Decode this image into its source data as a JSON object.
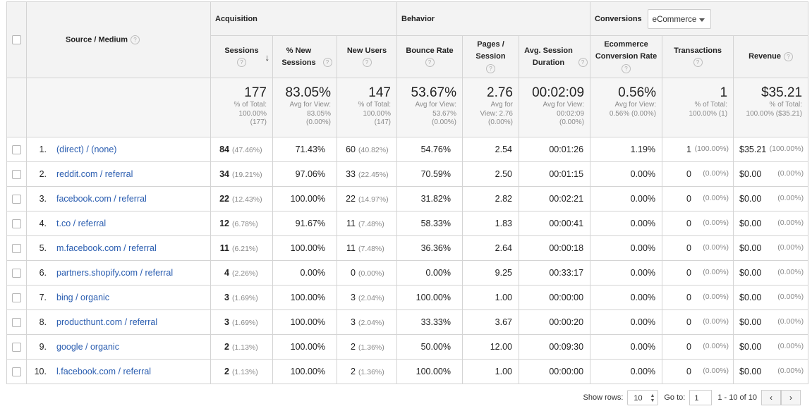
{
  "header": {
    "source_medium": "Source / Medium",
    "acquisition": "Acquisition",
    "behavior": "Behavior",
    "conversions": "Conversions",
    "conversion_type": "eCommerce",
    "columns": {
      "sessions": "Sessions",
      "new_sessions": "% New Sessions",
      "new_users": "New Users",
      "bounce_rate": "Bounce Rate",
      "pages_session": "Pages / Session",
      "avg_duration": "Avg. Session Duration",
      "ecom_rate": "Ecommerce Conversion Rate",
      "transactions": "Transactions",
      "revenue": "Revenue"
    },
    "help_glyph": "?",
    "sort_glyph": "↓"
  },
  "totals": {
    "sessions": {
      "value": "177",
      "l1": "% of Total:",
      "l2": "100.00%",
      "l3": "(177)"
    },
    "new_sessions": {
      "value": "83.05%",
      "l1": "Avg for View:",
      "l2": "83.05%",
      "l3": "(0.00%)"
    },
    "new_users": {
      "value": "147",
      "l1": "% of Total:",
      "l2": "100.00%",
      "l3": "(147)"
    },
    "bounce_rate": {
      "value": "53.67%",
      "l1": "Avg for View:",
      "l2": "53.67%",
      "l3": "(0.00%)"
    },
    "pages_session": {
      "value": "2.76",
      "l1": "Avg for",
      "l2": "View: 2.76",
      "l3": "(0.00%)"
    },
    "avg_duration": {
      "value": "00:02:09",
      "l1": "Avg for View:",
      "l2": "00:02:09",
      "l3": "(0.00%)"
    },
    "ecom_rate": {
      "value": "0.56%",
      "l1": "Avg for View:",
      "l2": "0.56% (0.00%)",
      "l3": ""
    },
    "transactions": {
      "value": "1",
      "l1": "% of Total:",
      "l2": "100.00% (1)",
      "l3": ""
    },
    "revenue": {
      "value": "$35.21",
      "l1": "% of Total:",
      "l2": "100.00% ($35.21)",
      "l3": ""
    }
  },
  "rows": [
    {
      "idx": "1.",
      "source": "(direct) / (none)",
      "sessions": "84",
      "sessions_pct": "(47.46%)",
      "new_sessions": "71.43%",
      "new_users": "60",
      "new_users_pct": "(40.82%)",
      "bounce_rate": "54.76%",
      "pages_session": "2.54",
      "avg_duration": "00:01:26",
      "ecom_rate": "1.19%",
      "transactions": "1",
      "transactions_pct": "(100.00%)",
      "revenue": "$35.21",
      "revenue_pct": "(100.00%)"
    },
    {
      "idx": "2.",
      "source": "reddit.com / referral",
      "sessions": "34",
      "sessions_pct": "(19.21%)",
      "new_sessions": "97.06%",
      "new_users": "33",
      "new_users_pct": "(22.45%)",
      "bounce_rate": "70.59%",
      "pages_session": "2.50",
      "avg_duration": "00:01:15",
      "ecom_rate": "0.00%",
      "transactions": "0",
      "transactions_pct": "(0.00%)",
      "revenue": "$0.00",
      "revenue_pct": "(0.00%)"
    },
    {
      "idx": "3.",
      "source": "facebook.com / referral",
      "sessions": "22",
      "sessions_pct": "(12.43%)",
      "new_sessions": "100.00%",
      "new_users": "22",
      "new_users_pct": "(14.97%)",
      "bounce_rate": "31.82%",
      "pages_session": "2.82",
      "avg_duration": "00:02:21",
      "ecom_rate": "0.00%",
      "transactions": "0",
      "transactions_pct": "(0.00%)",
      "revenue": "$0.00",
      "revenue_pct": "(0.00%)"
    },
    {
      "idx": "4.",
      "source": "t.co / referral",
      "sessions": "12",
      "sessions_pct": "(6.78%)",
      "new_sessions": "91.67%",
      "new_users": "11",
      "new_users_pct": "(7.48%)",
      "bounce_rate": "58.33%",
      "pages_session": "1.83",
      "avg_duration": "00:00:41",
      "ecom_rate": "0.00%",
      "transactions": "0",
      "transactions_pct": "(0.00%)",
      "revenue": "$0.00",
      "revenue_pct": "(0.00%)"
    },
    {
      "idx": "5.",
      "source": "m.facebook.com / referral",
      "sessions": "11",
      "sessions_pct": "(6.21%)",
      "new_sessions": "100.00%",
      "new_users": "11",
      "new_users_pct": "(7.48%)",
      "bounce_rate": "36.36%",
      "pages_session": "2.64",
      "avg_duration": "00:00:18",
      "ecom_rate": "0.00%",
      "transactions": "0",
      "transactions_pct": "(0.00%)",
      "revenue": "$0.00",
      "revenue_pct": "(0.00%)"
    },
    {
      "idx": "6.",
      "source": "partners.shopify.com / referral",
      "sessions": "4",
      "sessions_pct": "(2.26%)",
      "new_sessions": "0.00%",
      "new_users": "0",
      "new_users_pct": "(0.00%)",
      "bounce_rate": "0.00%",
      "pages_session": "9.25",
      "avg_duration": "00:33:17",
      "ecom_rate": "0.00%",
      "transactions": "0",
      "transactions_pct": "(0.00%)",
      "revenue": "$0.00",
      "revenue_pct": "(0.00%)"
    },
    {
      "idx": "7.",
      "source": "bing / organic",
      "sessions": "3",
      "sessions_pct": "(1.69%)",
      "new_sessions": "100.00%",
      "new_users": "3",
      "new_users_pct": "(2.04%)",
      "bounce_rate": "100.00%",
      "pages_session": "1.00",
      "avg_duration": "00:00:00",
      "ecom_rate": "0.00%",
      "transactions": "0",
      "transactions_pct": "(0.00%)",
      "revenue": "$0.00",
      "revenue_pct": "(0.00%)"
    },
    {
      "idx": "8.",
      "source": "producthunt.com / referral",
      "sessions": "3",
      "sessions_pct": "(1.69%)",
      "new_sessions": "100.00%",
      "new_users": "3",
      "new_users_pct": "(2.04%)",
      "bounce_rate": "33.33%",
      "pages_session": "3.67",
      "avg_duration": "00:00:20",
      "ecom_rate": "0.00%",
      "transactions": "0",
      "transactions_pct": "(0.00%)",
      "revenue": "$0.00",
      "revenue_pct": "(0.00%)"
    },
    {
      "idx": "9.",
      "source": "google / organic",
      "sessions": "2",
      "sessions_pct": "(1.13%)",
      "new_sessions": "100.00%",
      "new_users": "2",
      "new_users_pct": "(1.36%)",
      "bounce_rate": "50.00%",
      "pages_session": "12.00",
      "avg_duration": "00:09:30",
      "ecom_rate": "0.00%",
      "transactions": "0",
      "transactions_pct": "(0.00%)",
      "revenue": "$0.00",
      "revenue_pct": "(0.00%)"
    },
    {
      "idx": "10.",
      "source": "l.facebook.com / referral",
      "sessions": "2",
      "sessions_pct": "(1.13%)",
      "new_sessions": "100.00%",
      "new_users": "2",
      "new_users_pct": "(1.36%)",
      "bounce_rate": "100.00%",
      "pages_session": "1.00",
      "avg_duration": "00:00:00",
      "ecom_rate": "0.00%",
      "transactions": "0",
      "transactions_pct": "(0.00%)",
      "revenue": "$0.00",
      "revenue_pct": "(0.00%)"
    }
  ],
  "footer": {
    "show_rows_label": "Show rows:",
    "show_rows_value": "10",
    "goto_label": "Go to:",
    "goto_value": "1",
    "range": "1 - 10 of 10",
    "prev_glyph": "‹",
    "next_glyph": "›"
  },
  "colors": {
    "link": "#2a5db0",
    "header_bg": "#f3f3f3",
    "border": "#d4d4d4"
  }
}
